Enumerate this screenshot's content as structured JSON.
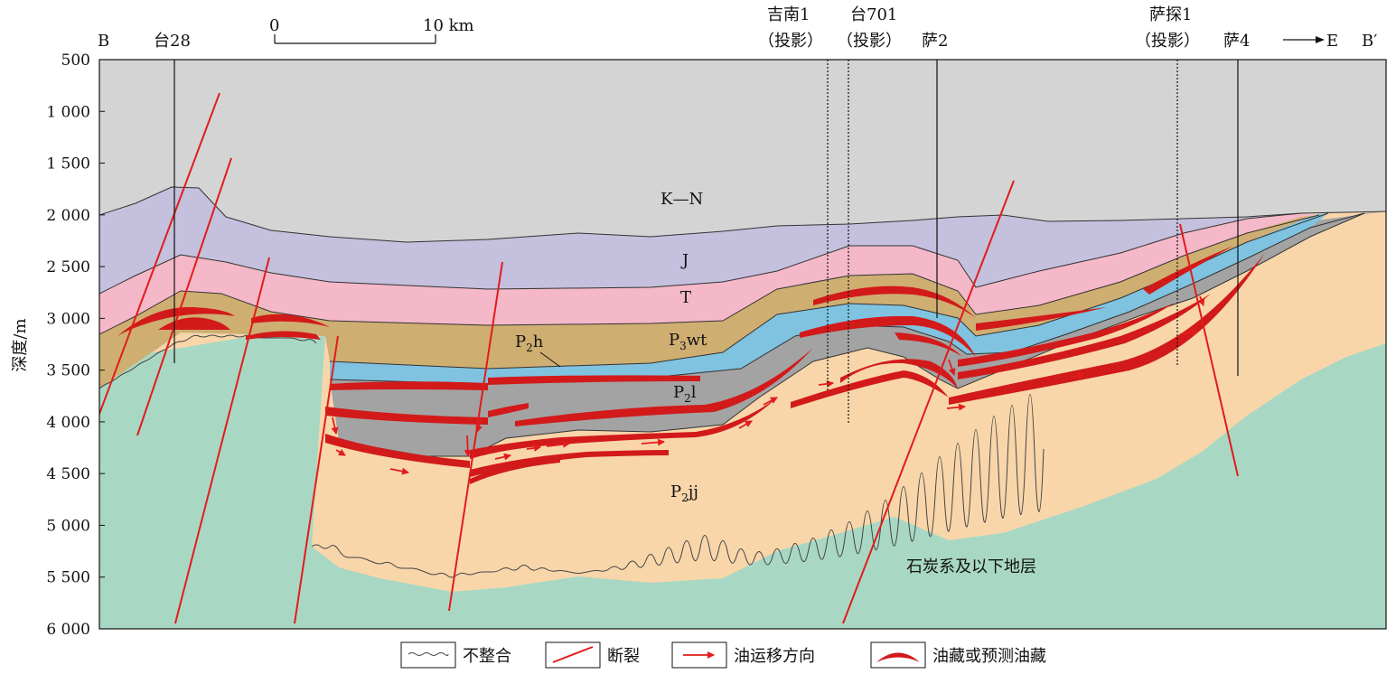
{
  "section": {
    "start_label": "B",
    "end_label": "B′",
    "direction_label": "E"
  },
  "scale_bar": {
    "start": "0",
    "end": "10 km"
  },
  "y_axis": {
    "label": "深度/m",
    "ticks": [
      "500",
      "1 000",
      "1 500",
      "2 000",
      "2 500",
      "3 000",
      "3 500",
      "4 000",
      "4 500",
      "5 000",
      "5 500",
      "6 000"
    ]
  },
  "wells": [
    {
      "name": "台28",
      "sub": ""
    },
    {
      "name": "吉南1",
      "sub": "（投影）"
    },
    {
      "name": "台701",
      "sub": "（投影）"
    },
    {
      "name": "萨2",
      "sub": ""
    },
    {
      "name": "萨探1",
      "sub": "（投影）"
    },
    {
      "name": "萨4",
      "sub": ""
    }
  ],
  "layers": {
    "kn": "K—N",
    "j": "J",
    "t": "T",
    "p3wt": {
      "main": "P",
      "sub": "3",
      "rest": "wt"
    },
    "p2h": {
      "main": "P",
      "sub": "2",
      "rest": "h"
    },
    "p2l": {
      "main": "P",
      "sub": "2",
      "rest": "l"
    },
    "p2jj": {
      "main": "P",
      "sub": "2",
      "rest": "jj"
    },
    "basement": "石炭系及以下地层"
  },
  "legend": {
    "unconformity": "不整合",
    "fault": "断裂",
    "migration": "油运移方向",
    "reservoir": "油藏或预测油藏"
  },
  "colors": {
    "kn": "#d4d4d4",
    "j": "#c4c0dd",
    "t": "#f4b8c8",
    "p3wt": "#cfae72",
    "p2h": "#7fc3e0",
    "p2l": "#a3a3a3",
    "p2jj": "#f8d6aa",
    "basement": "#a8d8c4",
    "fault": "#e21b1b",
    "reservoir": "#d21a1a"
  }
}
